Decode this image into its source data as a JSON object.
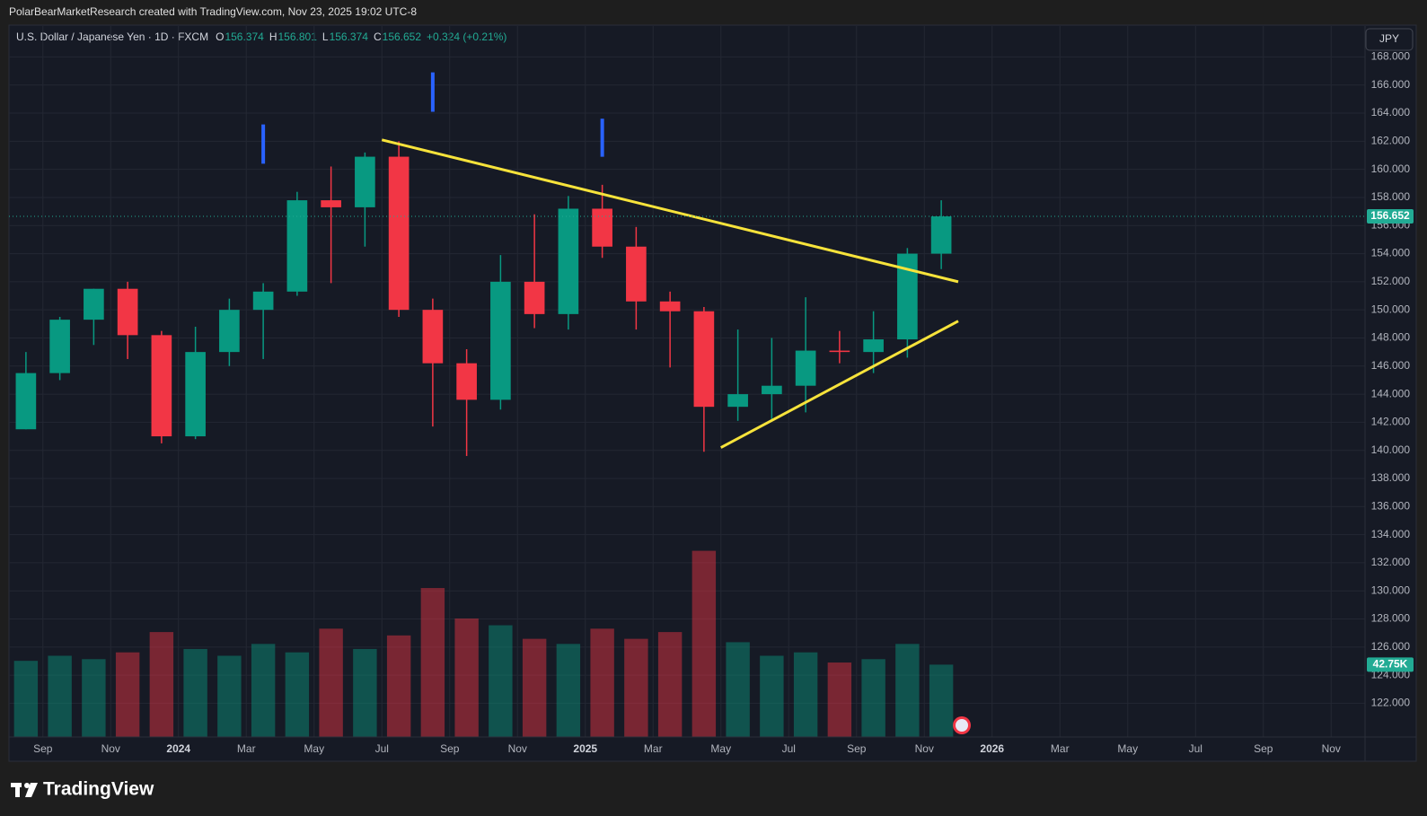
{
  "top_bar": "PolarBearMarketResearch created with TradingView.com, Nov 23, 2025 19:02 UTC-8",
  "header": {
    "symbol": "U.S. Dollar / Japanese Yen · 1D · FXCM",
    "ohlc": [
      {
        "key": "O",
        "value": "156.374"
      },
      {
        "key": "H",
        "value": "156.801"
      },
      {
        "key": "L",
        "value": "156.374"
      },
      {
        "key": "C",
        "value": "156.652"
      }
    ],
    "change": "+0.324 (+0.21%)"
  },
  "currency": "JPY",
  "brand": "TradingView",
  "chart_data": {
    "type": "candlestick",
    "up_color": "#089981",
    "down_color": "#f23645",
    "grid": true,
    "x": [
      "2023-08",
      "2023-09",
      "2023-10",
      "2023-11",
      "2023-12",
      "2024-01",
      "2024-02",
      "2024-03",
      "2024-04",
      "2024-05",
      "2024-06",
      "2024-07",
      "2024-08",
      "2024-09",
      "2024-10",
      "2024-11",
      "2024-12",
      "2025-01",
      "2025-02",
      "2025-03",
      "2025-04",
      "2025-05",
      "2025-06",
      "2025-07",
      "2025-08",
      "2025-09",
      "2025-10",
      "2025-11"
    ],
    "open": [
      141.5,
      145.5,
      149.3,
      151.5,
      148.2,
      141.0,
      147.0,
      150.0,
      151.3,
      157.8,
      157.3,
      160.9,
      150.0,
      146.2,
      143.6,
      152.0,
      149.7,
      157.2,
      154.5,
      150.6,
      149.9,
      143.1,
      144.0,
      144.6,
      147.1,
      147.0,
      147.9,
      154.0
    ],
    "high": [
      147.0,
      149.5,
      151.5,
      152.0,
      148.5,
      148.8,
      150.8,
      151.9,
      158.4,
      160.2,
      161.2,
      162.0,
      150.8,
      147.2,
      153.9,
      156.8,
      158.1,
      158.9,
      155.9,
      151.3,
      150.2,
      148.6,
      148.0,
      150.9,
      148.5,
      149.9,
      154.4,
      157.8
    ],
    "low": [
      141.5,
      145.0,
      147.5,
      146.5,
      140.5,
      140.8,
      146.0,
      146.5,
      151.0,
      151.9,
      154.5,
      149.5,
      141.7,
      139.6,
      142.9,
      148.7,
      148.6,
      153.7,
      148.6,
      145.9,
      139.9,
      142.1,
      142.1,
      142.7,
      146.2,
      145.5,
      146.6,
      152.9
    ],
    "close": [
      145.5,
      149.3,
      151.5,
      148.2,
      141.0,
      147.0,
      150.0,
      151.3,
      157.8,
      157.3,
      160.9,
      150.0,
      146.2,
      143.6,
      152.0,
      149.7,
      157.2,
      154.5,
      150.6,
      149.9,
      143.1,
      144.0,
      144.6,
      147.1,
      147.0,
      147.9,
      154.0,
      156.652
    ],
    "volume": {
      "values": [
        45,
        48,
        46,
        50,
        62,
        52,
        48,
        55,
        50,
        64,
        52,
        60,
        88,
        70,
        66,
        58,
        55,
        64,
        58,
        62,
        110,
        56,
        48,
        50,
        44,
        46,
        55,
        42.75
      ],
      "last_label": "42.75K",
      "vlim": [
        0,
        420
      ]
    },
    "last_price": 156.652,
    "xlim": [
      "2023-08",
      "2026-12"
    ],
    "xticks": [
      {
        "value": "2023-09",
        "label": "Sep"
      },
      {
        "value": "2023-11",
        "label": "Nov"
      },
      {
        "value": "2024-01",
        "label": "2024"
      },
      {
        "value": "2024-03",
        "label": "Mar"
      },
      {
        "value": "2024-05",
        "label": "May"
      },
      {
        "value": "2024-07",
        "label": "Jul"
      },
      {
        "value": "2024-09",
        "label": "Sep"
      },
      {
        "value": "2024-11",
        "label": "Nov"
      },
      {
        "value": "2025-01",
        "label": "2025"
      },
      {
        "value": "2025-03",
        "label": "Mar"
      },
      {
        "value": "2025-05",
        "label": "May"
      },
      {
        "value": "2025-07",
        "label": "Jul"
      },
      {
        "value": "2025-09",
        "label": "Sep"
      },
      {
        "value": "2025-11",
        "label": "Nov"
      },
      {
        "value": "2026-01",
        "label": "2026"
      },
      {
        "value": "2026-03",
        "label": "Mar"
      },
      {
        "value": "2026-05",
        "label": "May"
      },
      {
        "value": "2026-07",
        "label": "Jul"
      },
      {
        "value": "2026-09",
        "label": "Sep"
      },
      {
        "value": "2026-11",
        "label": "Nov"
      }
    ],
    "ylim": [
      119.6,
      170.2
    ],
    "yticks": [
      {
        "value": 122,
        "label": "122.000"
      },
      {
        "value": 124,
        "label": "124.000"
      },
      {
        "value": 126,
        "label": "126.000"
      },
      {
        "value": 128,
        "label": "128.000"
      },
      {
        "value": 130,
        "label": "130.000"
      },
      {
        "value": 132,
        "label": "132.000"
      },
      {
        "value": 134,
        "label": "134.000"
      },
      {
        "value": 136,
        "label": "136.000"
      },
      {
        "value": 138,
        "label": "138.000"
      },
      {
        "value": 140,
        "label": "140.000"
      },
      {
        "value": 142,
        "label": "142.000"
      },
      {
        "value": 144,
        "label": "144.000"
      },
      {
        "value": 146,
        "label": "146.000"
      },
      {
        "value": 148,
        "label": "148.000"
      },
      {
        "value": 150,
        "label": "150.000"
      },
      {
        "value": 152,
        "label": "152.000"
      },
      {
        "value": 154,
        "label": "154.000"
      },
      {
        "value": 156,
        "label": "156.000"
      },
      {
        "value": 158,
        "label": "158.000"
      },
      {
        "value": 160,
        "label": "160.000"
      },
      {
        "value": 162,
        "label": "162.000"
      },
      {
        "value": 164,
        "label": "164.000"
      },
      {
        "value": 166,
        "label": "166.000"
      },
      {
        "value": 168,
        "label": "168.000"
      }
    ],
    "trendlines": [
      {
        "x1": "2024-07",
        "y1": 162.1,
        "x2": "2025-12",
        "y2": 152.0,
        "color": "#f7e33b"
      },
      {
        "x1": "2025-05",
        "y1": 140.2,
        "x2": "2025-12",
        "y2": 149.2,
        "color": "#f7e33b"
      }
    ],
    "markers": [
      {
        "x": "2024-03",
        "y1": 163.2,
        "y2": 160.4,
        "color": "#2962ff"
      },
      {
        "x": "2024-08",
        "y1": 166.9,
        "y2": 164.1,
        "color": "#2962ff"
      },
      {
        "x": "2025-01",
        "y1": 163.6,
        "y2": 160.9,
        "color": "#2962ff"
      }
    ]
  }
}
